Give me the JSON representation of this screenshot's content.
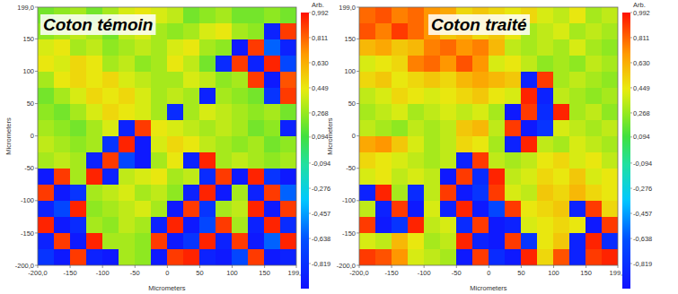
{
  "chart_data": [
    {
      "type": "heatmap",
      "title": "Coton témoin",
      "x_label": "Micrometers",
      "y_label": "Micrometers",
      "xlim": [
        -200,
        199
      ],
      "ylim": [
        -200,
        199
      ],
      "xticks": [
        {
          "value": -200,
          "label": "-200,0"
        },
        -150,
        -100,
        -50,
        0,
        50,
        100,
        150,
        {
          "value": 199,
          "label": "199,0"
        }
      ],
      "yticks": [
        {
          "value": -200,
          "label": "-200,0"
        },
        -150,
        -100,
        -50,
        0,
        50,
        100,
        150,
        {
          "value": 199,
          "label": "199,0"
        }
      ],
      "colorbar_label": "Arb.",
      "colorbar_range": [
        -1,
        0.992
      ],
      "colorbar_ticks": [
        {
          "value": 0.992,
          "label": "0,992"
        },
        {
          "value": 0.811,
          "label": "0,811"
        },
        {
          "value": 0.63,
          "label": "0,630"
        },
        {
          "value": 0.449,
          "label": "0,449"
        },
        {
          "value": 0.268,
          "label": "0,268"
        },
        {
          "value": 0.094,
          "label": "0,094"
        },
        {
          "value": -0.094,
          "label": "-0,094"
        },
        {
          "value": -0.276,
          "label": "-0,276"
        },
        {
          "value": -0.457,
          "label": "-0,457"
        },
        {
          "value": -0.638,
          "label": "-0,638"
        },
        {
          "value": -0.819,
          "label": "-0,819"
        }
      ],
      "cells": [
        [
          0.2,
          0.25,
          0.3,
          0.2,
          0.3,
          0.4,
          0.45,
          0.4,
          0.35,
          0.2,
          0.25,
          0.3,
          0.2,
          0.2,
          0.25,
          0.2
        ],
        [
          0.25,
          0.3,
          0.35,
          0.3,
          0.2,
          0.35,
          0.4,
          0.3,
          0.25,
          0.3,
          0.4,
          0.45,
          0.3,
          0.25,
          -0.9,
          0.9
        ],
        [
          0.4,
          0.45,
          0.3,
          0.35,
          0.25,
          0.3,
          0.35,
          0.3,
          0.4,
          0.45,
          0.3,
          0.25,
          -0.95,
          0.9,
          -0.6,
          -0.9
        ],
        [
          0.45,
          0.4,
          0.5,
          0.45,
          0.3,
          0.35,
          0.25,
          0.3,
          0.45,
          0.35,
          0.2,
          -0.85,
          0.9,
          -0.9,
          0.95,
          -0.7
        ],
        [
          0.3,
          0.45,
          0.5,
          0.45,
          0.5,
          0.4,
          0.35,
          0.3,
          0.3,
          0.4,
          0.35,
          0.25,
          0.3,
          0.9,
          -0.95,
          0.85
        ],
        [
          0.2,
          0.3,
          0.4,
          0.5,
          0.45,
          0.5,
          0.4,
          0.3,
          0.35,
          0.3,
          -0.9,
          0.3,
          0.25,
          0.2,
          -0.8,
          0.9
        ],
        [
          0.25,
          0.2,
          0.3,
          0.4,
          0.5,
          0.45,
          0.4,
          0.3,
          -0.85,
          0.3,
          0.4,
          0.35,
          0.3,
          0.25,
          0.3,
          0.2
        ],
        [
          0.3,
          0.25,
          0.2,
          0.3,
          0.4,
          -0.9,
          0.9,
          0.45,
          0.4,
          0.35,
          0.3,
          0.35,
          0.3,
          0.2,
          0.25,
          -0.9
        ],
        [
          0.35,
          0.3,
          0.25,
          0.3,
          -0.8,
          0.95,
          -0.95,
          0.4,
          0.5,
          0.45,
          0.35,
          0.3,
          0.25,
          0.3,
          0.2,
          0.25
        ],
        [
          0.3,
          0.35,
          0.3,
          -0.9,
          0.9,
          -0.7,
          -0.95,
          0.3,
          0.45,
          -0.9,
          0.95,
          0.3,
          0.35,
          0.3,
          0.25,
          0.3
        ],
        [
          -0.95,
          0.9,
          0.3,
          0.95,
          -0.9,
          0.35,
          0.4,
          0.45,
          0.3,
          0.35,
          -0.85,
          0.9,
          -0.95,
          0.95,
          -0.8,
          -0.95
        ],
        [
          0.9,
          -0.95,
          -0.8,
          0.3,
          0.35,
          0.4,
          0.3,
          0.35,
          0.25,
          -0.9,
          0.95,
          -0.95,
          0.3,
          -0.9,
          0.9,
          -0.6
        ],
        [
          -0.9,
          -0.7,
          0.95,
          0.25,
          0.3,
          0.35,
          0.4,
          0.3,
          -0.95,
          0.9,
          -0.8,
          0.3,
          0.35,
          0.95,
          -0.95,
          0.9
        ],
        [
          0.95,
          -0.95,
          -0.85,
          0.3,
          0.25,
          0.35,
          0.3,
          -0.9,
          0.95,
          -0.95,
          -0.7,
          0.9,
          0.3,
          -0.9,
          0.95,
          -0.85
        ],
        [
          -0.9,
          0.9,
          -0.95,
          0.95,
          0.3,
          0.3,
          0.25,
          0.9,
          -0.95,
          -0.8,
          0.95,
          -0.9,
          0.9,
          -0.95,
          -0.6,
          0.95
        ],
        [
          -0.8,
          -0.95,
          0.9,
          -0.9,
          -0.95,
          0.3,
          0.25,
          -0.95,
          0.9,
          0.95,
          -0.9,
          -0.95,
          -0.7,
          0.9,
          -0.95,
          -0.9
        ]
      ]
    },
    {
      "type": "heatmap",
      "title": "Coton traité",
      "x_label": "Micrometers",
      "y_label": "Micrometers",
      "xlim": [
        -200,
        199
      ],
      "ylim": [
        -200,
        199
      ],
      "xticks": [
        {
          "value": -200,
          "label": "-200,0"
        },
        -150,
        -100,
        -50,
        0,
        50,
        100,
        150,
        {
          "value": 199,
          "label": "199,0"
        }
      ],
      "yticks": [
        {
          "value": -200,
          "label": "-200,0"
        },
        -150,
        -100,
        -50,
        0,
        50,
        100,
        150,
        {
          "value": 199,
          "label": "199,0"
        }
      ],
      "colorbar_label": "Arb.",
      "colorbar_range": [
        -1,
        0.992
      ],
      "colorbar_ticks": [
        {
          "value": 0.992,
          "label": "0,992"
        },
        {
          "value": 0.811,
          "label": "0,811"
        },
        {
          "value": 0.63,
          "label": "0,630"
        },
        {
          "value": 0.449,
          "label": "0,449"
        },
        {
          "value": 0.268,
          "label": "0,268"
        },
        {
          "value": 0.094,
          "label": "0,094"
        },
        {
          "value": -0.094,
          "label": "-0,094"
        },
        {
          "value": -0.276,
          "label": "-0,276"
        },
        {
          "value": -0.457,
          "label": "-0,457"
        },
        {
          "value": -0.638,
          "label": "-0,638"
        },
        {
          "value": -0.819,
          "label": "-0,819"
        }
      ],
      "cells": [
        [
          0.8,
          0.85,
          0.75,
          0.8,
          0.7,
          0.65,
          0.5,
          0.55,
          0.5,
          0.45,
          0.5,
          0.4,
          0.35,
          0.45,
          0.3,
          0.35
        ],
        [
          0.85,
          0.75,
          0.9,
          0.8,
          0.7,
          0.55,
          0.6,
          0.5,
          0.55,
          0.45,
          0.3,
          0.35,
          0.4,
          0.3,
          0.35,
          0.3
        ],
        [
          0.6,
          0.65,
          0.55,
          0.6,
          0.75,
          0.8,
          0.7,
          0.75,
          0.6,
          0.35,
          0.3,
          0.35,
          0.3,
          0.4,
          0.3,
          0.25
        ],
        [
          0.4,
          0.45,
          0.5,
          0.75,
          0.8,
          0.7,
          0.85,
          0.7,
          0.4,
          0.45,
          0.35,
          0.25,
          0.3,
          0.25,
          0.35,
          0.3
        ],
        [
          0.5,
          0.55,
          0.45,
          0.5,
          0.55,
          0.5,
          0.6,
          0.65,
          0.6,
          0.55,
          -0.9,
          0.9,
          0.3,
          0.35,
          0.3,
          0.25
        ],
        [
          0.35,
          0.4,
          0.5,
          0.45,
          0.4,
          0.45,
          0.5,
          0.55,
          0.45,
          0.4,
          0.95,
          -0.9,
          0.35,
          0.3,
          0.25,
          0.3
        ],
        [
          0.3,
          0.35,
          0.4,
          0.3,
          0.35,
          0.4,
          0.35,
          0.4,
          0.3,
          -0.95,
          0.9,
          -0.85,
          0.95,
          0.3,
          0.35,
          0.25
        ],
        [
          0.35,
          0.3,
          0.25,
          0.35,
          0.3,
          0.35,
          0.55,
          0.6,
          0.35,
          0.9,
          -0.95,
          -0.8,
          0.4,
          0.35,
          0.3,
          0.35
        ],
        [
          0.65,
          0.7,
          0.55,
          0.4,
          0.3,
          0.35,
          0.5,
          0.45,
          0.3,
          -0.9,
          0.95,
          0.35,
          0.3,
          0.4,
          0.35,
          0.3
        ],
        [
          0.5,
          0.45,
          0.4,
          0.35,
          0.3,
          0.35,
          -0.9,
          0.9,
          0.35,
          0.3,
          0.35,
          0.45,
          0.5,
          0.4,
          0.45,
          0.35
        ],
        [
          0.4,
          0.45,
          0.35,
          0.4,
          0.35,
          -0.95,
          0.9,
          -0.85,
          0.95,
          0.35,
          0.4,
          0.5,
          0.45,
          0.55,
          0.4,
          0.45
        ],
        [
          -0.9,
          0.95,
          0.3,
          -0.85,
          0.35,
          0.9,
          -0.95,
          -0.8,
          0.9,
          0.4,
          0.35,
          0.55,
          0.5,
          0.6,
          0.5,
          0.45
        ],
        [
          0.35,
          -0.9,
          0.9,
          -0.95,
          0.4,
          -0.9,
          0.95,
          -0.95,
          -0.7,
          0.9,
          0.45,
          0.5,
          0.55,
          -0.9,
          0.9,
          0.5
        ],
        [
          0.9,
          -0.95,
          -0.8,
          0.95,
          0.35,
          0.4,
          -0.85,
          0.9,
          -0.95,
          -0.9,
          0.4,
          0.45,
          0.5,
          0.45,
          -0.95,
          0.9
        ],
        [
          0.4,
          0.35,
          0.6,
          0.45,
          0.3,
          0.35,
          0.95,
          -0.9,
          -0.95,
          0.9,
          -0.8,
          0.45,
          0.55,
          -0.9,
          0.95,
          -0.85
        ],
        [
          0.9,
          0.85,
          0.7,
          0.4,
          0.35,
          0.3,
          -0.95,
          0.9,
          -0.85,
          -0.95,
          0.95,
          0.5,
          0.85,
          -0.9,
          0.9,
          0.95
        ]
      ]
    }
  ]
}
